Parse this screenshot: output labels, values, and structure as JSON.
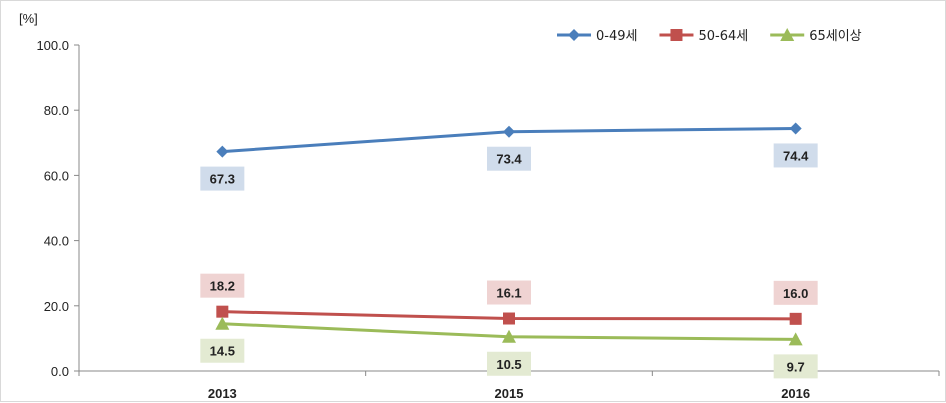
{
  "chart_data": {
    "type": "line",
    "title": "",
    "xlabel": "",
    "ylabel": "",
    "unit": "[%]",
    "categories": [
      "2013",
      "2015",
      "2016"
    ],
    "ylim": [
      0,
      100
    ],
    "yticks": [
      "0.0",
      "20.0",
      "40.0",
      "60.0",
      "80.0",
      "100.0"
    ],
    "ytick_values": [
      0,
      20,
      40,
      60,
      80,
      100
    ],
    "grid": false,
    "legend_position": "top-right",
    "series": [
      {
        "name": "0-49세",
        "values": [
          67.3,
          73.4,
          74.4
        ],
        "labels": [
          "67.3",
          "73.4",
          "74.4"
        ],
        "color": "#4a7ebb",
        "label_bg": "#d0dceb",
        "marker": "diamond",
        "label_side": "below"
      },
      {
        "name": "50-64세",
        "values": [
          18.2,
          16.1,
          16.0
        ],
        "labels": [
          "18.2",
          "16.1",
          "16.0"
        ],
        "color": "#c0504d",
        "label_bg": "#efd3d2",
        "marker": "square",
        "label_side": "above"
      },
      {
        "name": "65세이상",
        "values": [
          14.5,
          10.5,
          9.7
        ],
        "labels": [
          "14.5",
          "10.5",
          "9.7"
        ],
        "color": "#9bbb59",
        "label_bg": "#e3ead2",
        "marker": "triangle",
        "label_side": "below"
      }
    ]
  }
}
